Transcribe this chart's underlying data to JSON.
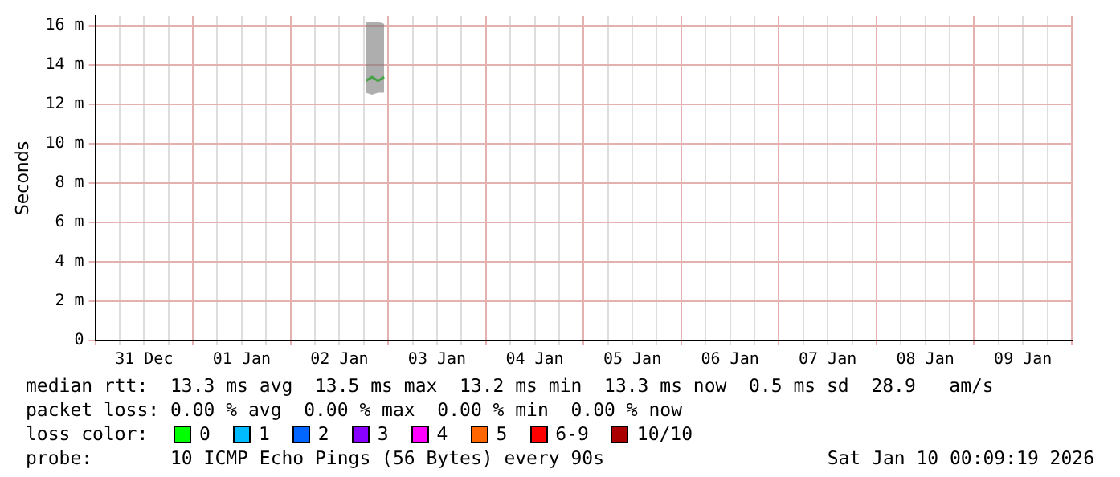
{
  "chart_data": {
    "type": "line",
    "ylabel": "Seconds",
    "x": [
      "2026-01-02T18:30",
      "2026-01-02T20:00",
      "2026-01-02T21:30",
      "2026-01-02T23:00"
    ],
    "series": [
      {
        "color": "#00e000",
        "values": [
          13.2,
          13.4,
          13.2,
          13.4
        ],
        "lower": [
          12.6,
          12.5,
          12.6,
          12.6
        ],
        "upper": [
          16.2,
          16.2,
          16.2,
          16.1
        ]
      }
    ],
    "xlim": [
      "2025-12-31T00:00",
      "2026-01-10T00:00"
    ],
    "xticks": [
      {
        "value": "2025-12-31T00:00",
        "label": null
      },
      {
        "value": "2025-12-31T06:00",
        "label": null
      },
      {
        "value": "2025-12-31T12:00",
        "label": "31 Dec"
      },
      {
        "value": "2025-12-31T18:00",
        "label": null
      },
      {
        "value": "2026-01-01T00:00",
        "label": null
      },
      {
        "value": "2026-01-01T06:00",
        "label": null
      },
      {
        "value": "2026-01-01T12:00",
        "label": "01 Jan"
      },
      {
        "value": "2026-01-01T18:00",
        "label": null
      },
      {
        "value": "2026-01-02T00:00",
        "label": null
      },
      {
        "value": "2026-01-02T06:00",
        "label": null
      },
      {
        "value": "2026-01-02T12:00",
        "label": "02 Jan"
      },
      {
        "value": "2026-01-02T18:00",
        "label": null
      },
      {
        "value": "2026-01-03T00:00",
        "label": null
      },
      {
        "value": "2026-01-03T06:00",
        "label": null
      },
      {
        "value": "2026-01-03T12:00",
        "label": "03 Jan"
      },
      {
        "value": "2026-01-03T18:00",
        "label": null
      },
      {
        "value": "2026-01-04T00:00",
        "label": null
      },
      {
        "value": "2026-01-04T06:00",
        "label": null
      },
      {
        "value": "2026-01-04T12:00",
        "label": "04 Jan"
      },
      {
        "value": "2026-01-04T18:00",
        "label": null
      },
      {
        "value": "2026-01-05T00:00",
        "label": null
      },
      {
        "value": "2026-01-05T06:00",
        "label": null
      },
      {
        "value": "2026-01-05T12:00",
        "label": "05 Jan"
      },
      {
        "value": "2026-01-05T18:00",
        "label": null
      },
      {
        "value": "2026-01-06T00:00",
        "label": null
      },
      {
        "value": "2026-01-06T06:00",
        "label": null
      },
      {
        "value": "2026-01-06T12:00",
        "label": "06 Jan"
      },
      {
        "value": "2026-01-06T18:00",
        "label": null
      },
      {
        "value": "2026-01-07T00:00",
        "label": null
      },
      {
        "value": "2026-01-07T06:00",
        "label": null
      },
      {
        "value": "2026-01-07T12:00",
        "label": "07 Jan"
      },
      {
        "value": "2026-01-07T18:00",
        "label": null
      },
      {
        "value": "2026-01-08T00:00",
        "label": null
      },
      {
        "value": "2026-01-08T06:00",
        "label": null
      },
      {
        "value": "2026-01-08T12:00",
        "label": "08 Jan"
      },
      {
        "value": "2026-01-08T18:00",
        "label": null
      },
      {
        "value": "2026-01-09T00:00",
        "label": null
      },
      {
        "value": "2026-01-09T06:00",
        "label": null
      },
      {
        "value": "2026-01-09T12:00",
        "label": "09 Jan"
      },
      {
        "value": "2026-01-09T18:00",
        "label": null
      },
      {
        "value": "2026-01-10T00:00",
        "label": null
      }
    ],
    "ylim": [
      0,
      16.5
    ],
    "yticks": [
      {
        "value": 0,
        "label": "0"
      },
      {
        "value": 2,
        "label": "2 m"
      },
      {
        "value": 4,
        "label": "4 m"
      },
      {
        "value": 6,
        "label": "6 m"
      },
      {
        "value": 8,
        "label": "8 m"
      },
      {
        "value": 10,
        "label": "10 m"
      },
      {
        "value": 12,
        "label": "12 m"
      },
      {
        "value": 14,
        "label": "14 m"
      },
      {
        "value": 16,
        "label": "16 m"
      }
    ],
    "grid": true,
    "legend": false,
    "annotations": [
      "median rtt:  13.3 ms avg  13.5 ms max  13.2 ms min  13.3 ms now  0.5 ms sd  28.9   am/s",
      "packet loss: 0.00 % avg  0.00 % max  0.00 % min  0.00 % now",
      "loss color:",
      "0",
      "1",
      "2",
      "3",
      "4",
      "5",
      "6-9",
      "10/10",
      "probe:       10 ICMP Echo Pings (56 Bytes) every 90s",
      "Sat Jan 10 00:09:19 2026"
    ]
  }
}
